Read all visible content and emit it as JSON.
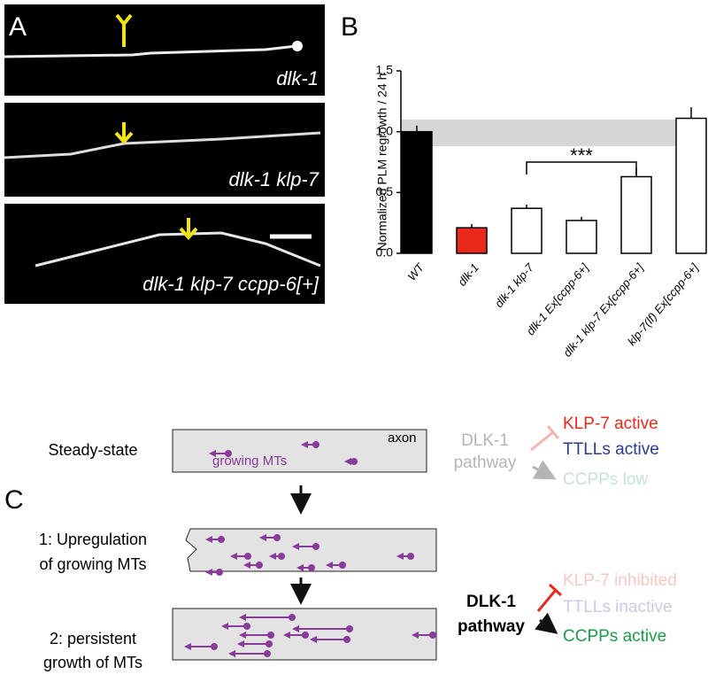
{
  "panel_labels": [
    "A",
    "B",
    "C"
  ],
  "micrographs": [
    {
      "label": "dlk-1"
    },
    {
      "label": "dlk-1 klp-7"
    },
    {
      "label": "dlk-1 klp-7 ccpp-6[+]"
    }
  ],
  "chart_data": {
    "type": "bar",
    "y_label": "Normalized PLM regrowth / 24 h",
    "categories": [
      "WT",
      "dlk-1",
      "dlk-1 klp-7",
      "dlk-1 Ex[ccpp-6+]",
      "dlk-1 klp-7 Ex[ccpp-6+]",
      "klp-7(lf) Ex[ccpp-6+]"
    ],
    "values": [
      1.0,
      0.21,
      0.37,
      0.27,
      0.63,
      1.11
    ],
    "errors": [
      0.05,
      0.03,
      0.03,
      0.03,
      0.07,
      0.09
    ],
    "colors": [
      "#000000",
      "#e8291c",
      "#ffffff",
      "#ffffff",
      "#ffffff",
      "#ffffff"
    ],
    "ylim": [
      0,
      1.5
    ],
    "yticks": [
      {
        "value": 0,
        "label": "0.0"
      },
      {
        "value": 0.5,
        "label": "0.5"
      },
      {
        "value": 1.0,
        "label": "1.0"
      },
      {
        "value": 1.5,
        "label": "1.5"
      }
    ],
    "reference_band": [
      0.88,
      1.1
    ],
    "annotation": "***"
  },
  "diagram": {
    "axon_label": "axon",
    "mt_label": "growing MTs",
    "rows": [
      {
        "label": [
          "Steady-state"
        ]
      },
      {
        "label": [
          "1: Upregulation",
          "of growing MTs"
        ]
      },
      {
        "label": [
          "2:  persistent",
          "growth of MTs"
        ]
      }
    ],
    "states": [
      {
        "pathway": [
          "DLK-1",
          "pathway"
        ],
        "klp7": "KLP-7 active",
        "ttll": "TTLLs active",
        "ccpp": "CCPPs low"
      },
      {
        "pathway": [
          "DLK-1",
          "pathway"
        ],
        "klp7": "KLP-7 inhibited",
        "ttll": "TTLLs inactive",
        "ccpp": "CCPPs active"
      }
    ]
  }
}
